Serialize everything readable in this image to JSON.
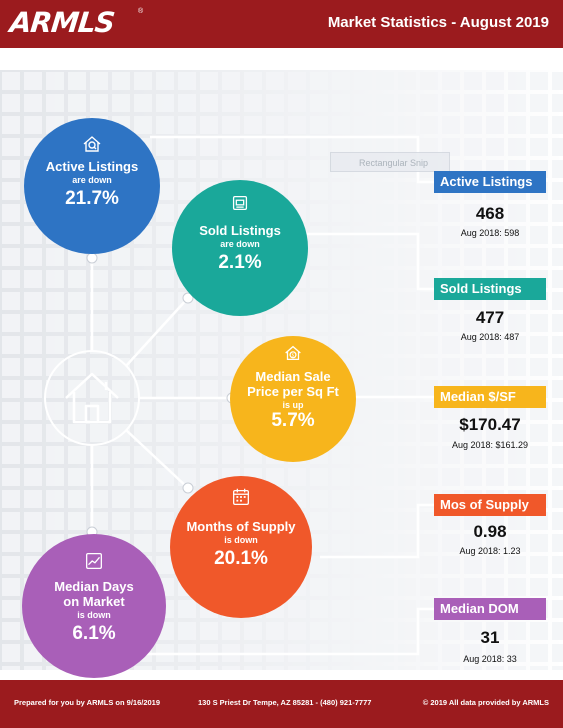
{
  "header": {
    "logo": "ARMLS",
    "logo_mark": "®",
    "title": "Market Statistics - August 2019"
  },
  "ghost_label": "Rectangular Snip",
  "colors": {
    "header_red": "#9b1b1e",
    "active_blue": "#2e74c4",
    "sold_teal": "#1aa89a",
    "median_yellow": "#f7b51c",
    "supply_orange": "#f0582a",
    "dom_purple": "#a95fb8"
  },
  "circles": {
    "active": {
      "title": "Active Listings",
      "sub": "are down",
      "pct": "21.7%",
      "icon": "house-magnifier-icon"
    },
    "sold": {
      "title": "Sold Listings",
      "sub": "are down",
      "pct": "2.1%",
      "icon": "sold-sign-icon"
    },
    "median": {
      "title_line1": "Median Sale",
      "title_line2": "Price per Sq Ft",
      "sub": "is up",
      "pct": "5.7%",
      "icon": "house-dollar-icon"
    },
    "supply": {
      "title": "Months of Supply",
      "sub": "is down",
      "pct": "20.1%",
      "icon": "calendar-icon"
    },
    "dom": {
      "title_line1": "Median Days",
      "title_line2": "on Market",
      "sub": "is down",
      "pct": "6.1%",
      "icon": "chart-icon"
    }
  },
  "stats": [
    {
      "label": "Active Listings",
      "value": "468",
      "prev": "Aug 2018: 598"
    },
    {
      "label": "Sold Listings",
      "value": "477",
      "prev": "Aug 2018: 487"
    },
    {
      "label": "Median $/SF",
      "value": "$170.47",
      "prev": "Aug 2018: $161.29"
    },
    {
      "label": "Mos of Supply",
      "value": "0.98",
      "prev": "Aug 2018: 1.23"
    },
    {
      "label": "Median DOM",
      "value": "31",
      "prev": "Aug 2018: 33"
    }
  ],
  "footer": {
    "left": "Prepared for you by ARMLS on 9/16/2019",
    "center": "130 S Priest Dr  Tempe, AZ 85281 - (480) 921-7777",
    "right": "© 2019 All data provided by ARMLS"
  }
}
